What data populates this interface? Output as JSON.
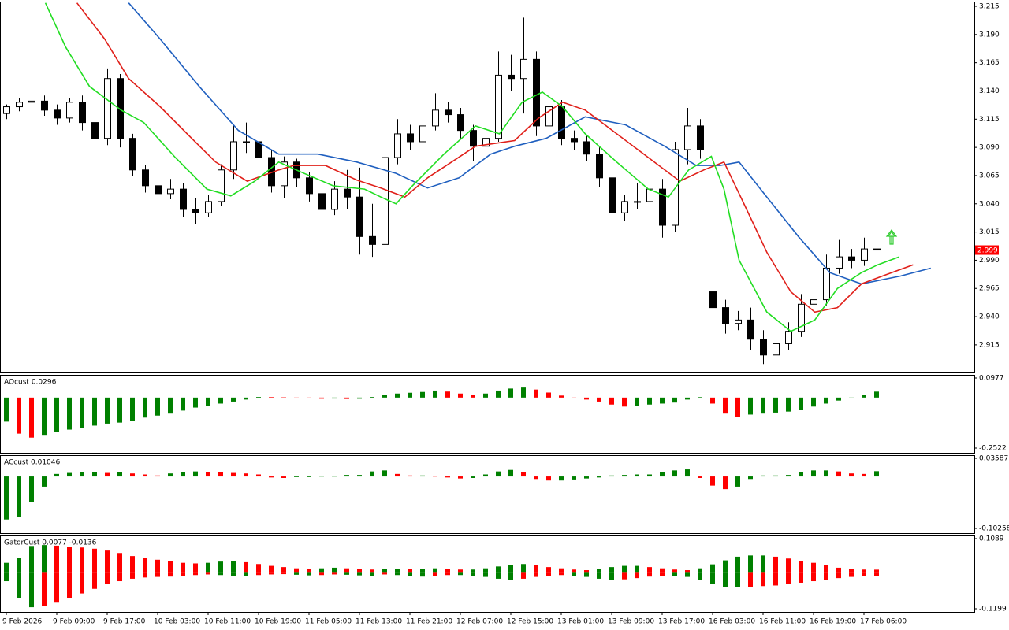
{
  "chart_data": [
    {
      "type": "candlestick",
      "xlim": [
        -0.5,
        76.75
      ],
      "ylim": [
        2.8905,
        3.2185
      ],
      "yticks": [
        3.215,
        {
          "value": 3.19,
          "label": "3.190"
        },
        3.165,
        {
          "value": 3.14,
          "label": "3.140"
        },
        3.115,
        {
          "value": 3.09,
          "label": "3.090"
        },
        3.065,
        {
          "value": 3.04,
          "label": "3.040"
        },
        3.015,
        {
          "value": 2.99,
          "label": "2.990"
        },
        2.965,
        {
          "value": 2.94,
          "label": "2.940"
        },
        2.915
      ],
      "last_price": 2.999,
      "last_price_color": "#ff0000",
      "up_color": "#ffffff",
      "down_color": "#000000",
      "candles": [
        [
          3.12,
          3.128,
          3.115,
          3.126
        ],
        [
          3.126,
          3.134,
          3.122,
          3.13
        ],
        [
          3.13,
          3.135,
          3.125,
          3.131
        ],
        [
          3.131,
          3.136,
          3.118,
          3.123
        ],
        [
          3.123,
          3.128,
          3.11,
          3.116
        ],
        [
          3.116,
          3.134,
          3.112,
          3.13
        ],
        [
          3.13,
          3.136,
          3.105,
          3.112
        ],
        [
          3.112,
          3.14,
          3.06,
          3.098
        ],
        [
          3.098,
          3.16,
          3.092,
          3.151
        ],
        [
          3.151,
          3.155,
          3.09,
          3.098
        ],
        [
          3.098,
          3.102,
          3.065,
          3.07
        ],
        [
          3.07,
          3.074,
          3.05,
          3.056
        ],
        [
          3.056,
          3.06,
          3.04,
          3.049
        ],
        [
          3.049,
          3.062,
          3.044,
          3.053
        ],
        [
          3.053,
          3.058,
          3.028,
          3.035
        ],
        [
          3.035,
          3.045,
          3.022,
          3.032
        ],
        [
          3.032,
          3.048,
          3.028,
          3.042
        ],
        [
          3.042,
          3.075,
          3.038,
          3.07
        ],
        [
          3.07,
          3.11,
          3.062,
          3.095
        ],
        [
          3.095,
          3.112,
          3.085,
          3.095
        ],
        [
          3.095,
          3.138,
          3.075,
          3.081
        ],
        [
          3.081,
          3.088,
          3.05,
          3.056
        ],
        [
          3.056,
          3.082,
          3.045,
          3.077
        ],
        [
          3.077,
          3.08,
          3.055,
          3.063
        ],
        [
          3.063,
          3.068,
          3.042,
          3.049
        ],
        [
          3.049,
          3.06,
          3.022,
          3.035
        ],
        [
          3.035,
          3.06,
          3.03,
          3.053
        ],
        [
          3.053,
          3.07,
          3.035,
          3.046
        ],
        [
          3.046,
          3.072,
          2.995,
          3.011
        ],
        [
          3.011,
          3.04,
          2.993,
          3.004
        ],
        [
          3.004,
          3.09,
          3.0,
          3.081
        ],
        [
          3.081,
          3.115,
          3.075,
          3.102
        ],
        [
          3.102,
          3.11,
          3.088,
          3.095
        ],
        [
          3.095,
          3.12,
          3.09,
          3.109
        ],
        [
          3.109,
          3.138,
          3.105,
          3.123
        ],
        [
          3.123,
          3.13,
          3.112,
          3.119
        ],
        [
          3.119,
          3.125,
          3.098,
          3.105
        ],
        [
          3.105,
          3.11,
          3.078,
          3.091
        ],
        [
          3.091,
          3.105,
          3.085,
          3.098
        ],
        [
          3.098,
          3.175,
          3.095,
          3.154
        ],
        [
          3.154,
          3.172,
          3.14,
          3.151
        ],
        [
          3.151,
          3.205,
          3.12,
          3.168
        ],
        [
          3.168,
          3.175,
          3.1,
          3.109
        ],
        [
          3.109,
          3.14,
          3.104,
          3.126
        ],
        [
          3.126,
          3.132,
          3.092,
          3.098
        ],
        [
          3.098,
          3.105,
          3.088,
          3.095
        ],
        [
          3.095,
          3.1,
          3.078,
          3.084
        ],
        [
          3.084,
          3.09,
          3.055,
          3.063
        ],
        [
          3.063,
          3.068,
          3.025,
          3.032
        ],
        [
          3.032,
          3.048,
          3.025,
          3.042
        ],
        [
          3.042,
          3.058,
          3.035,
          3.042
        ],
        [
          3.042,
          3.065,
          3.035,
          3.053
        ],
        [
          3.053,
          3.062,
          3.01,
          3.021
        ],
        [
          3.021,
          3.095,
          3.015,
          3.088
        ],
        [
          3.088,
          3.125,
          3.075,
          3.109
        ],
        [
          3.109,
          3.115,
          3.08,
          3.088
        ],
        [
          2.962,
          2.968,
          2.94,
          2.948
        ],
        [
          2.948,
          2.955,
          2.925,
          2.934
        ],
        [
          2.934,
          2.945,
          2.928,
          2.937
        ],
        [
          2.937,
          2.948,
          2.91,
          2.92
        ],
        [
          2.92,
          2.928,
          2.898,
          2.906
        ],
        [
          2.906,
          2.925,
          2.902,
          2.916
        ],
        [
          2.916,
          2.935,
          2.91,
          2.927
        ],
        [
          2.927,
          2.96,
          2.922,
          2.951
        ],
        [
          2.951,
          2.965,
          2.94,
          2.955
        ],
        [
          2.955,
          2.995,
          2.95,
          2.983
        ],
        [
          2.983,
          3.008,
          2.978,
          2.993
        ],
        [
          2.993,
          3.0,
          2.983,
          2.99
        ],
        [
          2.99,
          3.01,
          2.985,
          3.0
        ],
        [
          3.0,
          3.008,
          2.995,
          2.999
        ]
      ],
      "series": [
        {
          "color": "#1f5fbf",
          "x": [
            9.7,
            12.2,
            15.3,
            18.4,
            21.6,
            24.7,
            27.8,
            30.9,
            33.4,
            35.9,
            38.4,
            40.3,
            42.8,
            45.9,
            49.1,
            52.2,
            54.7,
            56.6,
            58.1,
            60.3,
            62.8,
            65.3,
            67.8,
            70.9,
            73.3
          ],
          "values": [
            3.218,
            3.186,
            3.144,
            3.105,
            3.084,
            3.084,
            3.077,
            3.067,
            3.054,
            3.063,
            3.084,
            3.091,
            3.098,
            3.117,
            3.11,
            3.091,
            3.074,
            3.074,
            3.077,
            3.046,
            3.011,
            2.979,
            2.969,
            2.976,
            2.983
          ]
        },
        {
          "color": "#e0201a",
          "x": [
            5.6,
            7.8,
            9.7,
            12.2,
            14.7,
            16.6,
            19.1,
            21.6,
            22.8,
            25.3,
            27.8,
            29.7,
            31.6,
            33.4,
            35.3,
            37.2,
            40.3,
            42.2,
            44.1,
            45.9,
            48.4,
            50.9,
            53.4,
            55.3,
            56.9,
            58.4,
            60.3,
            62.2,
            64.1,
            65.9,
            67.8,
            69.7,
            71.9
          ],
          "values": [
            3.218,
            3.186,
            3.151,
            3.126,
            3.098,
            3.077,
            3.06,
            3.07,
            3.074,
            3.074,
            3.061,
            3.054,
            3.046,
            3.063,
            3.077,
            3.091,
            3.096,
            3.116,
            3.13,
            3.123,
            3.102,
            3.081,
            3.06,
            3.07,
            3.077,
            3.042,
            2.997,
            2.962,
            2.944,
            2.948,
            2.969,
            2.977,
            2.986
          ]
        },
        {
          "color": "#22dd22",
          "x": [
            3.1,
            4.7,
            6.6,
            9.1,
            10.9,
            13.4,
            15.9,
            17.8,
            19.7,
            21.6,
            23.4,
            25.9,
            28.4,
            29.7,
            30.9,
            32.2,
            34.7,
            37.2,
            39.1,
            40.9,
            42.5,
            44.1,
            45.9,
            48.4,
            50.9,
            52.5,
            54.1,
            55.9,
            56.9,
            58.1,
            60.3,
            62.2,
            64.1,
            65.9,
            67.8,
            69.1,
            70.8
          ],
          "values": [
            3.218,
            3.179,
            3.144,
            3.123,
            3.112,
            3.081,
            3.053,
            3.047,
            3.06,
            3.077,
            3.068,
            3.056,
            3.053,
            3.046,
            3.04,
            3.056,
            3.084,
            3.109,
            3.102,
            3.13,
            3.139,
            3.126,
            3.102,
            3.077,
            3.053,
            3.046,
            3.07,
            3.082,
            3.053,
            2.99,
            2.944,
            2.927,
            2.937,
            2.965,
            2.979,
            2.986,
            2.993
          ]
        }
      ]
    },
    {
      "type": "bar",
      "title": "AOcust 0.0296",
      "ylim": [
        -0.2758,
        0.1134
      ],
      "yticks": [
        0.0977,
        -0.2522
      ],
      "up_color": "#008000",
      "down_color": "#ff0000",
      "values": [
        -0.12,
        -0.18,
        -0.2,
        -0.19,
        -0.17,
        -0.16,
        -0.15,
        -0.14,
        -0.13,
        -0.125,
        -0.115,
        -0.1,
        -0.09,
        -0.08,
        -0.065,
        -0.05,
        -0.04,
        -0.03,
        -0.02,
        -0.01,
        0.003,
        0.002,
        0.001,
        -0.002,
        -0.003,
        -0.006,
        -0.005,
        -0.007,
        -0.006,
        0.003,
        0.012,
        0.02,
        0.024,
        0.028,
        0.035,
        0.03,
        0.02,
        0.012,
        0.02,
        0.035,
        0.045,
        0.05,
        0.04,
        0.025,
        0.01,
        -0.002,
        -0.01,
        -0.02,
        -0.035,
        -0.045,
        -0.04,
        -0.035,
        -0.03,
        -0.025,
        -0.01,
        0.002,
        -0.03,
        -0.08,
        -0.095,
        -0.085,
        -0.08,
        -0.075,
        -0.07,
        -0.06,
        -0.045,
        -0.03,
        -0.015,
        0.0,
        0.015,
        0.0296
      ]
    },
    {
      "type": "bar",
      "title": "ACcust 0.01046",
      "ylim": [
        -0.1119,
        0.0421
      ],
      "yticks": [
        0.03587,
        -0.10258
      ],
      "up_color": "#008000",
      "down_color": "#ff0000",
      "values": [
        -0.085,
        -0.08,
        -0.05,
        -0.02,
        0.005,
        0.007,
        0.008,
        0.008,
        0.007,
        0.008,
        0.006,
        0.004,
        0.002,
        0.006,
        0.009,
        0.01,
        0.009,
        0.008,
        0.007,
        0.006,
        0.004,
        -0.002,
        -0.003,
        -0.001,
        -0.001,
        0.001,
        0.001,
        0.003,
        0.003,
        0.01,
        0.012,
        0.005,
        0.002,
        0.002,
        0.001,
        -0.002,
        -0.004,
        -0.003,
        0.004,
        0.01,
        0.013,
        0.008,
        -0.005,
        -0.008,
        -0.008,
        -0.006,
        -0.004,
        -0.002,
        0.002,
        0.003,
        0.004,
        0.004,
        0.008,
        0.012,
        0.014,
        -0.003,
        -0.018,
        -0.025,
        -0.02,
        -0.005,
        0.002,
        0.002,
        0.003,
        0.008,
        0.012,
        0.012,
        0.01,
        0.006,
        0.005,
        0.01046
      ]
    },
    {
      "type": "gator",
      "title": "GatorCust 0.0077 -0.0136",
      "ylim": [
        -0.1302,
        0.1192
      ],
      "yticks": [
        0.1089,
        -0.1199
      ],
      "up_color": "#008000",
      "down_color": "#ff0000",
      "series": [
        {
          "values": [
            0.03,
            0.045,
            0.085,
            0.088,
            0.086,
            0.083,
            0.08,
            0.076,
            0.07,
            0.062,
            0.052,
            0.045,
            0.04,
            0.035,
            0.03,
            0.028,
            0.03,
            0.034,
            0.036,
            0.032,
            0.026,
            0.02,
            0.016,
            0.012,
            0.01,
            0.012,
            0.014,
            0.012,
            0.01,
            0.008,
            0.01,
            0.011,
            0.009,
            0.01,
            0.012,
            0.01,
            0.008,
            0.008,
            0.012,
            0.018,
            0.024,
            0.026,
            0.022,
            0.016,
            0.012,
            0.008,
            0.006,
            0.01,
            0.016,
            0.02,
            0.02,
            0.016,
            0.012,
            0.008,
            0.006,
            0.012,
            0.025,
            0.038,
            0.05,
            0.054,
            0.054,
            0.05,
            0.044,
            0.036,
            0.03,
            0.022,
            0.014,
            0.01,
            0.008,
            0.0077
          ]
        },
        {
          "values": [
            -0.03,
            -0.085,
            -0.115,
            -0.11,
            -0.1,
            -0.085,
            -0.07,
            -0.055,
            -0.04,
            -0.03,
            -0.022,
            -0.018,
            -0.016,
            -0.015,
            -0.013,
            -0.01,
            -0.008,
            -0.01,
            -0.012,
            -0.012,
            -0.01,
            -0.008,
            -0.007,
            -0.009,
            -0.011,
            -0.01,
            -0.008,
            -0.009,
            -0.011,
            -0.012,
            -0.008,
            -0.01,
            -0.013,
            -0.015,
            -0.013,
            -0.01,
            -0.01,
            -0.012,
            -0.016,
            -0.022,
            -0.025,
            -0.022,
            -0.016,
            -0.012,
            -0.01,
            -0.012,
            -0.016,
            -0.022,
            -0.026,
            -0.024,
            -0.02,
            -0.015,
            -0.012,
            -0.012,
            -0.016,
            -0.025,
            -0.04,
            -0.048,
            -0.05,
            -0.048,
            -0.046,
            -0.044,
            -0.04,
            -0.035,
            -0.03,
            -0.025,
            -0.02,
            -0.016,
            -0.014,
            -0.0136
          ]
        }
      ]
    }
  ],
  "time_axis": [
    "9 Feb 2026",
    "9 Feb 09:00",
    "9 Feb 17:00",
    "10 Feb 03:00",
    "10 Feb 11:00",
    "10 Feb 19:00",
    "11 Feb 05:00",
    "11 Feb 13:00",
    "11 Feb 21:00",
    "12 Feb 07:00",
    "12 Feb 15:00",
    "13 Feb 01:00",
    "13 Feb 09:00",
    "13 Feb 17:00",
    "16 Feb 03:00",
    "16 Feb 11:00",
    "16 Feb 19:00",
    "17 Feb 06:00"
  ]
}
